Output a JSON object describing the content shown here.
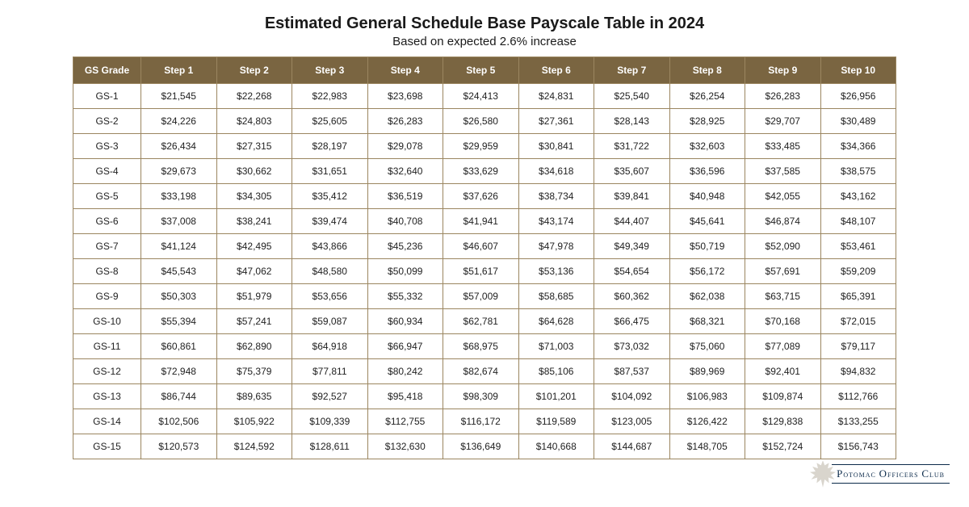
{
  "title": "Estimated General Schedule Base Payscale Table in 2024",
  "subtitle": "Based on expected 2.6% increase",
  "colors": {
    "header_bg": "#7a6541",
    "header_text": "#ffffff",
    "border": "#9b8660",
    "cell_bg": "#ffffff",
    "cell_text": "#222222",
    "title_text": "#1a1a1a",
    "logo_text": "#0b2a4a",
    "leaf_fill": "#d9d5cd"
  },
  "typography": {
    "title_fontsize": 20,
    "subtitle_fontsize": 15,
    "header_fontsize": 12,
    "cell_fontsize": 12,
    "logo_fontsize": 11
  },
  "table": {
    "columns": [
      "GS Grade",
      "Step 1",
      "Step 2",
      "Step 3",
      "Step 4",
      "Step 5",
      "Step 6",
      "Step 7",
      "Step 8",
      "Step 9",
      "Step 10"
    ],
    "rows": [
      [
        "GS-1",
        "$21,545",
        "$22,268",
        "$22,983",
        "$23,698",
        "$24,413",
        "$24,831",
        "$25,540",
        "$26,254",
        "$26,283",
        "$26,956"
      ],
      [
        "GS-2",
        "$24,226",
        "$24,803",
        "$25,605",
        "$26,283",
        "$26,580",
        "$27,361",
        "$28,143",
        "$28,925",
        "$29,707",
        "$30,489"
      ],
      [
        "GS-3",
        "$26,434",
        "$27,315",
        "$28,197",
        "$29,078",
        "$29,959",
        "$30,841",
        "$31,722",
        "$32,603",
        "$33,485",
        "$34,366"
      ],
      [
        "GS-4",
        "$29,673",
        "$30,662",
        "$31,651",
        "$32,640",
        "$33,629",
        "$34,618",
        "$35,607",
        "$36,596",
        "$37,585",
        "$38,575"
      ],
      [
        "GS-5",
        "$33,198",
        "$34,305",
        "$35,412",
        "$36,519",
        "$37,626",
        "$38,734",
        "$39,841",
        "$40,948",
        "$42,055",
        "$43,162"
      ],
      [
        "GS-6",
        "$37,008",
        "$38,241",
        "$39,474",
        "$40,708",
        "$41,941",
        "$43,174",
        "$44,407",
        "$45,641",
        "$46,874",
        "$48,107"
      ],
      [
        "GS-7",
        "$41,124",
        "$42,495",
        "$43,866",
        "$45,236",
        "$46,607",
        "$47,978",
        "$49,349",
        "$50,719",
        "$52,090",
        "$53,461"
      ],
      [
        "GS-8",
        "$45,543",
        "$47,062",
        "$48,580",
        "$50,099",
        "$51,617",
        "$53,136",
        "$54,654",
        "$56,172",
        "$57,691",
        "$59,209"
      ],
      [
        "GS-9",
        "$50,303",
        "$51,979",
        "$53,656",
        "$55,332",
        "$57,009",
        "$58,685",
        "$60,362",
        "$62,038",
        "$63,715",
        "$65,391"
      ],
      [
        "GS-10",
        "$55,394",
        "$57,241",
        "$59,087",
        "$60,934",
        "$62,781",
        "$64,628",
        "$66,475",
        "$68,321",
        "$70,168",
        "$72,015"
      ],
      [
        "GS-11",
        "$60,861",
        "$62,890",
        "$64,918",
        "$66,947",
        "$68,975",
        "$71,003",
        "$73,032",
        "$75,060",
        "$77,089",
        "$79,117"
      ],
      [
        "GS-12",
        "$72,948",
        "$75,379",
        "$77,811",
        "$80,242",
        "$82,674",
        "$85,106",
        "$87,537",
        "$89,969",
        "$92,401",
        "$94,832"
      ],
      [
        "GS-13",
        "$86,744",
        "$89,635",
        "$92,527",
        "$95,418",
        "$98,309",
        "$101,201",
        "$104,092",
        "$106,983",
        "$109,874",
        "$112,766"
      ],
      [
        "GS-14",
        "$102,506",
        "$105,922",
        "$109,339",
        "$112,755",
        "$116,172",
        "$119,589",
        "$123,005",
        "$126,422",
        "$129,838",
        "$133,255"
      ],
      [
        "GS-15",
        "$120,573",
        "$124,592",
        "$128,611",
        "$132,630",
        "$136,649",
        "$140,668",
        "$144,687",
        "$148,705",
        "$152,724",
        "$156,743"
      ]
    ]
  },
  "logo": {
    "text": "Potomac Officers Club",
    "leaf_color": "#d9d5cd"
  }
}
